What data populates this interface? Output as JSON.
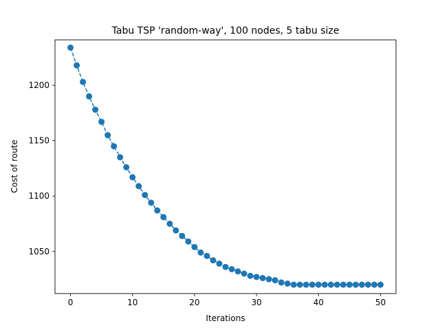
{
  "chart_data": {
    "type": "line",
    "title": "Tabu TSP 'random-way', 100 nodes, 5 tabu size",
    "xlabel": "Iterations",
    "ylabel": "Cost of route",
    "xlim": [
      -2.5,
      52.5
    ],
    "ylim": [
      1012,
      1241
    ],
    "xticks": [
      0,
      10,
      20,
      30,
      40,
      50
    ],
    "yticks": [
      1050,
      1100,
      1150,
      1200
    ],
    "grid": false,
    "colors": {
      "series": "#1f77b4"
    },
    "line_style": "dashed",
    "marker": "circle",
    "series": [
      {
        "x": [
          0,
          1,
          2,
          3,
          4,
          5,
          6,
          7,
          8,
          9,
          10,
          11,
          12,
          13,
          14,
          15,
          16,
          17,
          18,
          19,
          20,
          21,
          22,
          23,
          24,
          25,
          26,
          27,
          28,
          29,
          30,
          31,
          32,
          33,
          34,
          35,
          36,
          37,
          38,
          39,
          40,
          41,
          42,
          43,
          44,
          45,
          46,
          47,
          48,
          49,
          50
        ],
        "values": [
          1234,
          1218,
          1203,
          1190,
          1178,
          1167,
          1155,
          1145,
          1135,
          1126,
          1117,
          1109,
          1101,
          1094,
          1087,
          1081,
          1075,
          1069,
          1064,
          1059,
          1054,
          1049,
          1046,
          1042,
          1039,
          1036,
          1034,
          1032,
          1030,
          1028,
          1027,
          1026,
          1025,
          1024,
          1022,
          1021,
          1020,
          1020,
          1020,
          1020,
          1020,
          1020,
          1020,
          1020,
          1020,
          1020,
          1020,
          1020,
          1020,
          1020,
          1020
        ]
      }
    ]
  }
}
